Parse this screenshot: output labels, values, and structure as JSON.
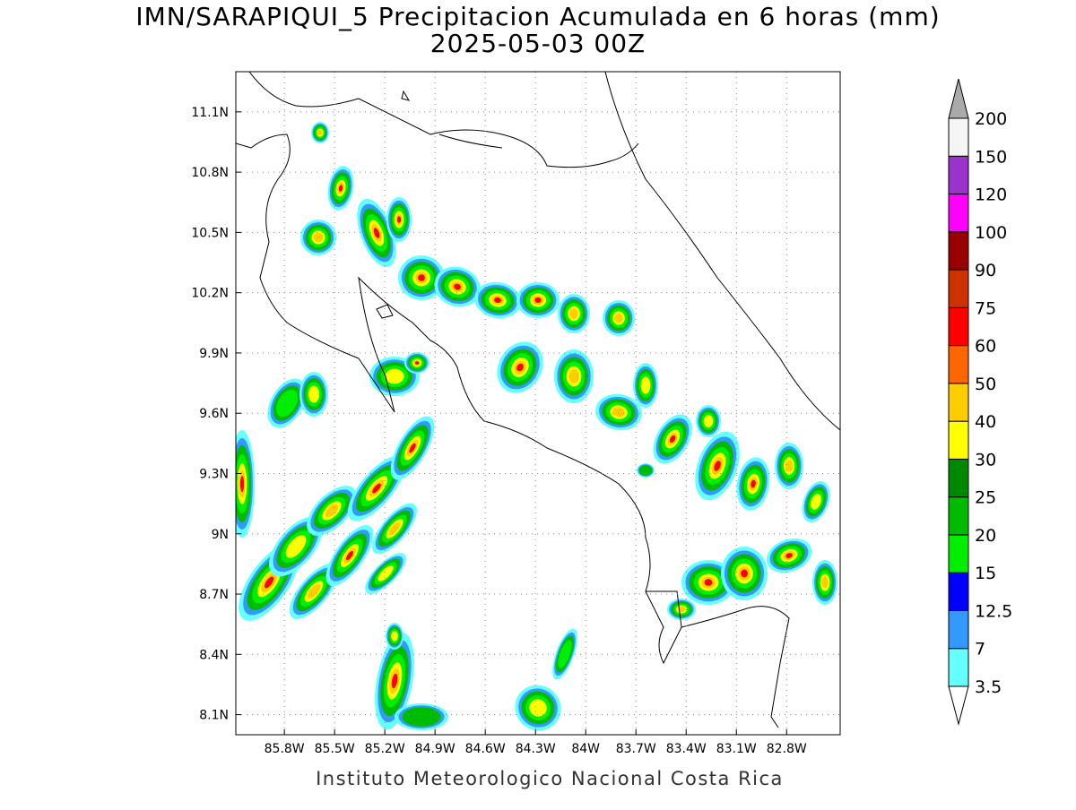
{
  "map": {
    "title": "IMN/SARAPIQUI_5 Precipitacion Acumulada en 6 horas (mm)",
    "subtitle": "2025-05-03 00Z",
    "xlim": [
      -86.09,
      -82.48
    ],
    "ylim": [
      8.0,
      11.3
    ],
    "xticks": [
      {
        "value": -85.8,
        "label": "85.8W"
      },
      {
        "value": -85.5,
        "label": "85.5W"
      },
      {
        "value": -85.2,
        "label": "85.2W"
      },
      {
        "value": -84.9,
        "label": "84.9W"
      },
      {
        "value": -84.6,
        "label": "84.6W"
      },
      {
        "value": -84.3,
        "label": "84.3W"
      },
      {
        "value": -84.0,
        "label": "84W"
      },
      {
        "value": -83.7,
        "label": "83.7W"
      },
      {
        "value": -83.4,
        "label": "83.4W"
      },
      {
        "value": -83.1,
        "label": "83.1W"
      },
      {
        "value": -82.8,
        "label": "82.8W"
      }
    ],
    "yticks": [
      {
        "value": 8.1,
        "label": "8.1N"
      },
      {
        "value": 8.4,
        "label": "8.4N"
      },
      {
        "value": 8.7,
        "label": "8.7N"
      },
      {
        "value": 9.0,
        "label": "9N"
      },
      {
        "value": 9.3,
        "label": "9.3N"
      },
      {
        "value": 9.6,
        "label": "9.6N"
      },
      {
        "value": 9.9,
        "label": "9.9N"
      },
      {
        "value": 10.2,
        "label": "10.2N"
      },
      {
        "value": 10.5,
        "label": "10.5N"
      },
      {
        "value": 10.8,
        "label": "10.8N"
      },
      {
        "value": 11.1,
        "label": "11.1N"
      }
    ],
    "grid": true,
    "colorbar": {
      "levels": [
        3.5,
        7,
        12.5,
        15,
        20,
        25,
        30,
        40,
        50,
        60,
        75,
        90,
        100,
        120,
        150,
        200
      ],
      "colors": [
        "#66ffff",
        "#3399ff",
        "#0000ff",
        "#00ee00",
        "#00bb00",
        "#008800",
        "#ffff00",
        "#ffcc00",
        "#ff6600",
        "#ff0000",
        "#cc3300",
        "#990000",
        "#ff00ff",
        "#9933cc",
        "#f5f5f5"
      ],
      "over_color": "#aaaaaa",
      "under_color": "#ffffff"
    },
    "credit": "Instituto Meteorologico Nacional Costa Rica"
  }
}
